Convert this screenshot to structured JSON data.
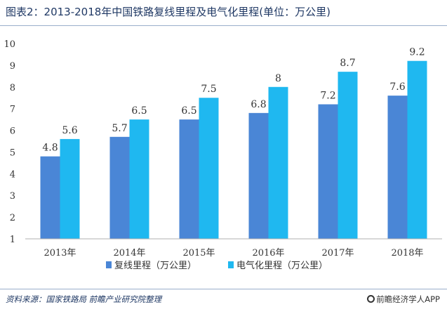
{
  "header": {
    "title": "图表2：2013-2018年中国铁路复线里程及电气化里程(单位：万公里)"
  },
  "footer": {
    "source": "资料来源：国家铁路局 前瞻产业研究院整理",
    "brand": "前瞻经济学人APP"
  },
  "colors": {
    "series1": "#4a86d6",
    "series2": "#1fb8f0",
    "axis": "#b0b0b0"
  },
  "chart_data": {
    "type": "bar",
    "categories": [
      "2013年",
      "2014年",
      "2015年",
      "2016年",
      "2017年",
      "2018年"
    ],
    "series": [
      {
        "name": "复线里程（万公里）",
        "values": [
          4.8,
          5.7,
          6.5,
          6.8,
          7.2,
          7.6
        ]
      },
      {
        "name": "电气化里程（万公里）",
        "values": [
          5.6,
          6.5,
          7.5,
          8,
          8.7,
          9.2
        ]
      }
    ],
    "data_labels": [
      [
        "4.8",
        "5.7",
        "6.5",
        "6.8",
        "7.2",
        "7.6"
      ],
      [
        "5.6",
        "6.5",
        "7.5",
        "8",
        "8.7",
        "9.2"
      ]
    ],
    "y_ticks": [
      "1",
      "2",
      "3",
      "4",
      "5",
      "6",
      "7",
      "8",
      "9",
      "10"
    ],
    "ylim": [
      1,
      10
    ],
    "legend_position": "bottom",
    "grid": false
  }
}
